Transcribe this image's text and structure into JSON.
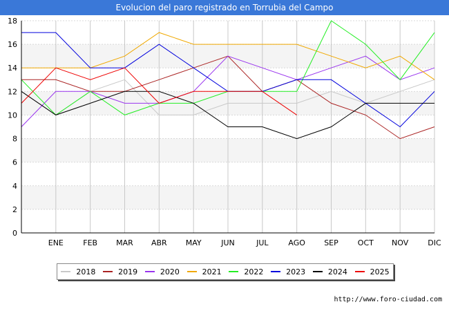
{
  "header": {
    "title": "Evolucion del paro registrado en Torrubia del Campo"
  },
  "footer": {
    "url": "http://www.foro-ciudad.com"
  },
  "chart_data": {
    "type": "line",
    "categories": [
      "",
      "ENE",
      "FEB",
      "MAR",
      "ABR",
      "MAY",
      "JUN",
      "JUL",
      "AGO",
      "SEP",
      "OCT",
      "NOV",
      "DIC"
    ],
    "ylim": [
      0,
      18
    ],
    "yticks": [
      0,
      2,
      4,
      6,
      8,
      10,
      12,
      14,
      16,
      18
    ],
    "grid": true,
    "legend_position": "bottom",
    "series": [
      {
        "name": "2018",
        "color": "#c8c8c8",
        "values": [
          12,
          10,
          12,
          13,
          10,
          10,
          11,
          11,
          11,
          12,
          11,
          12,
          13
        ]
      },
      {
        "name": "2019",
        "color": "#aa2222",
        "values": [
          13,
          13,
          12,
          12,
          13,
          14,
          15,
          12,
          13,
          11,
          10,
          8,
          9
        ]
      },
      {
        "name": "2020",
        "color": "#9933ee",
        "values": [
          9,
          12,
          12,
          11,
          11,
          12,
          15,
          14,
          13,
          14,
          15,
          13,
          14
        ]
      },
      {
        "name": "2021",
        "color": "#f0a800",
        "values": [
          14,
          14,
          14,
          15,
          17,
          16,
          16,
          16,
          16,
          15,
          14,
          15,
          13
        ]
      },
      {
        "name": "2022",
        "color": "#22ee22",
        "values": [
          13,
          10,
          12,
          10,
          11,
          11,
          12,
          12,
          12,
          18,
          16,
          13,
          17
        ]
      },
      {
        "name": "2023",
        "color": "#0000dd",
        "values": [
          17,
          17,
          14,
          14,
          16,
          14,
          12,
          12,
          13,
          13,
          11,
          9,
          12
        ]
      },
      {
        "name": "2024",
        "color": "#000000",
        "values": [
          12,
          10,
          11,
          12,
          12,
          11,
          9,
          9,
          8,
          9,
          11,
          11,
          11
        ]
      },
      {
        "name": "2025",
        "color": "#ee0000",
        "values": [
          11,
          14,
          13,
          14,
          11,
          12,
          12,
          12,
          10,
          null,
          null,
          null,
          null
        ]
      }
    ]
  }
}
